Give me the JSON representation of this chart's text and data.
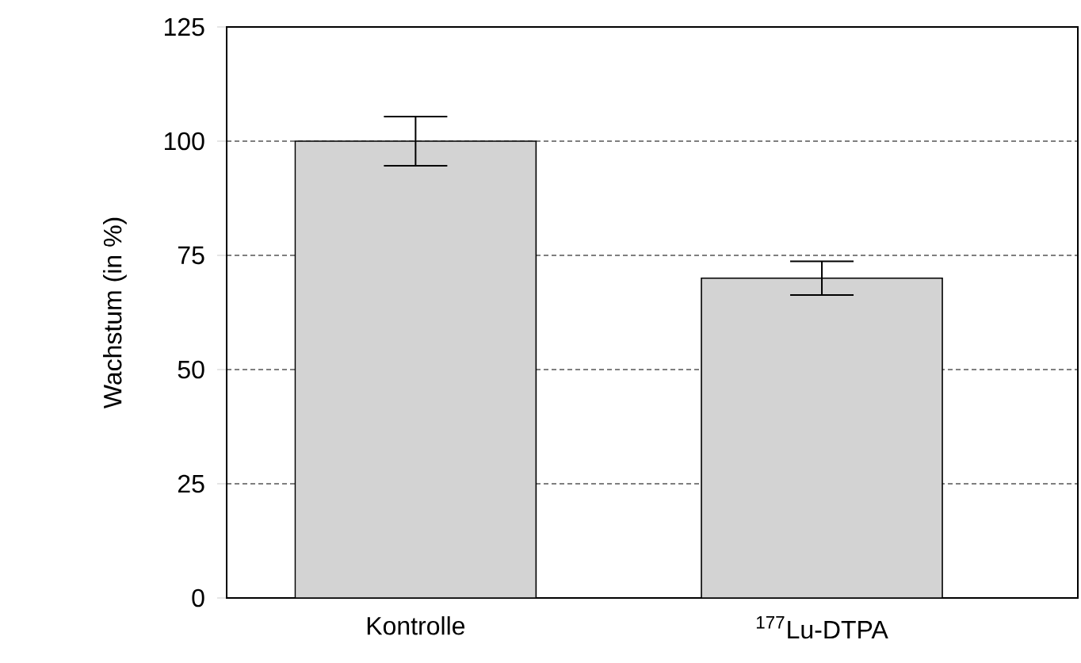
{
  "chart_data": {
    "type": "bar",
    "ylabel": "Wachstum (in %)",
    "categories": [
      "Kontrolle",
      "$^{177}$Lu-DTPA"
    ],
    "values": [
      100,
      70
    ],
    "errors": [
      5.4,
      3.7
    ],
    "color": "#d3d3d3",
    "ylim": [
      0,
      125
    ],
    "yticks": [
      0,
      25,
      50,
      75,
      100,
      125
    ],
    "grid": "y"
  }
}
